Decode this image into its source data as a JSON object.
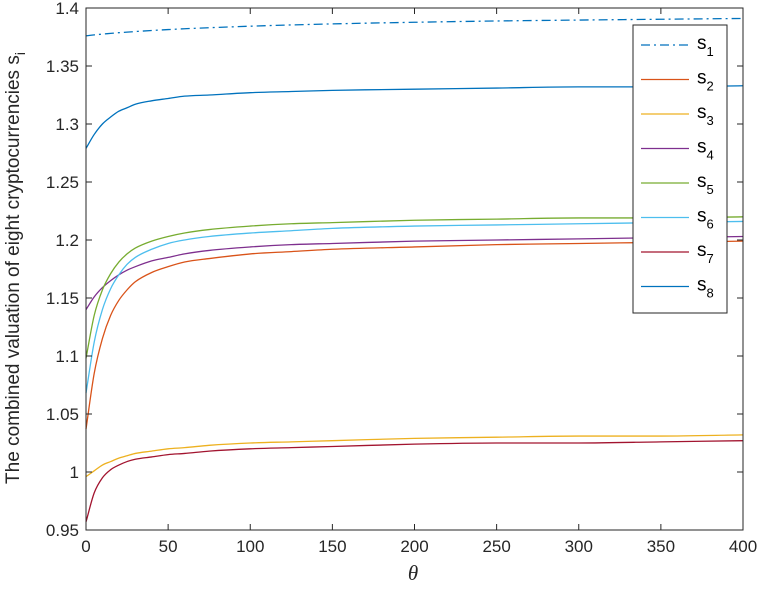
{
  "chart_data": {
    "type": "line",
    "title": "",
    "xlabel": "θ",
    "ylabel": "The combined valuation of eight cryptocurrencies s",
    "ylabel_subscript": "i",
    "xlim": [
      0,
      400
    ],
    "ylim": [
      0.95,
      1.4
    ],
    "xticks": [
      0,
      50,
      100,
      150,
      200,
      250,
      300,
      350,
      400
    ],
    "yticks": [
      0.95,
      1,
      1.05,
      1.1,
      1.15,
      1.2,
      1.25,
      1.3,
      1.35,
      1.4
    ],
    "xtick_labels": [
      "0",
      "50",
      "100",
      "150",
      "200",
      "250",
      "300",
      "350",
      "400"
    ],
    "ytick_labels": [
      "0.95",
      "1",
      "1.05",
      "1.1",
      "1.15",
      "1.2",
      "1.25",
      "1.3",
      "1.35",
      "1.4"
    ],
    "grid": false,
    "legend_position": "top-right",
    "x": [
      0,
      5,
      10,
      15,
      20,
      25,
      30,
      40,
      50,
      60,
      75,
      100,
      125,
      150,
      200,
      250,
      300,
      350,
      400
    ],
    "series": [
      {
        "name": "s",
        "sub": "1",
        "color": "#0072BD",
        "dash": "dashdot",
        "values": [
          1.376,
          1.3768,
          1.3775,
          1.3781,
          1.3787,
          1.3792,
          1.3797,
          1.3806,
          1.3814,
          1.3821,
          1.383,
          1.3843,
          1.3854,
          1.3863,
          1.3877,
          1.3888,
          1.3896,
          1.3903,
          1.391
        ]
      },
      {
        "name": "s",
        "sub": "2",
        "color": "#D95319",
        "dash": "solid",
        "values": [
          1.037,
          1.085,
          1.115,
          1.135,
          1.148,
          1.157,
          1.164,
          1.172,
          1.177,
          1.181,
          1.184,
          1.188,
          1.19,
          1.192,
          1.194,
          1.196,
          1.197,
          1.198,
          1.199
        ]
      },
      {
        "name": "s",
        "sub": "3",
        "color": "#EDB120",
        "dash": "solid",
        "values": [
          0.996,
          1.001,
          1.006,
          1.009,
          1.012,
          1.014,
          1.016,
          1.018,
          1.02,
          1.021,
          1.023,
          1.025,
          1.026,
          1.027,
          1.029,
          1.03,
          1.031,
          1.031,
          1.032
        ]
      },
      {
        "name": "s",
        "sub": "4",
        "color": "#7E2F8E",
        "dash": "solid",
        "values": [
          1.14,
          1.151,
          1.159,
          1.165,
          1.17,
          1.174,
          1.177,
          1.182,
          1.185,
          1.188,
          1.191,
          1.194,
          1.196,
          1.197,
          1.199,
          1.2,
          1.201,
          1.202,
          1.203
        ]
      },
      {
        "name": "s",
        "sub": "5",
        "color": "#77AC30",
        "dash": "solid",
        "values": [
          1.098,
          1.135,
          1.157,
          1.171,
          1.181,
          1.188,
          1.193,
          1.199,
          1.203,
          1.206,
          1.209,
          1.212,
          1.214,
          1.215,
          1.217,
          1.218,
          1.219,
          1.219,
          1.22
        ]
      },
      {
        "name": "s",
        "sub": "6",
        "color": "#4DBEEE",
        "dash": "solid",
        "values": [
          1.068,
          1.112,
          1.14,
          1.158,
          1.17,
          1.179,
          1.185,
          1.192,
          1.197,
          1.2,
          1.203,
          1.206,
          1.208,
          1.21,
          1.212,
          1.213,
          1.214,
          1.215,
          1.216
        ]
      },
      {
        "name": "s",
        "sub": "7",
        "color": "#A2142F",
        "dash": "solid",
        "values": [
          0.957,
          0.982,
          0.995,
          1.002,
          1.006,
          1.009,
          1.011,
          1.013,
          1.015,
          1.016,
          1.018,
          1.02,
          1.021,
          1.022,
          1.024,
          1.025,
          1.025,
          1.026,
          1.027
        ]
      },
      {
        "name": "s",
        "sub": "8",
        "color": "#0072BD",
        "dash": "solid",
        "values": [
          1.279,
          1.291,
          1.3,
          1.306,
          1.311,
          1.314,
          1.317,
          1.32,
          1.322,
          1.324,
          1.325,
          1.327,
          1.328,
          1.329,
          1.33,
          1.331,
          1.332,
          1.332,
          1.333
        ]
      }
    ]
  }
}
